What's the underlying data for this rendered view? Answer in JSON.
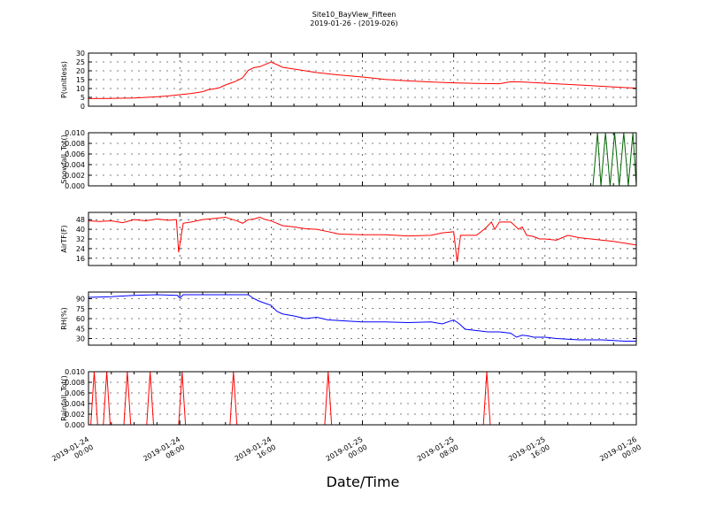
{
  "figure": {
    "title": "Site10_BayView_Fifteen",
    "subtitle": "2019-01-26 - (2019-026)",
    "xlabel": "Date/Time",
    "xtick_labels": [
      [
        "2019-01-24",
        "00:00"
      ],
      [
        "2019-01-24",
        "08:00"
      ],
      [
        "2019-01-24",
        "16:00"
      ],
      [
        "2019-01-25",
        "00:00"
      ],
      [
        "2019-01-25",
        "08:00"
      ],
      [
        "2019-01-25",
        "16:00"
      ],
      [
        "2019-01-26",
        "00:00"
      ]
    ]
  },
  "chart_data": [
    {
      "type": "line",
      "ylabel": "P(unitless)",
      "color": "#ff0000",
      "ylim": [
        0,
        30
      ],
      "yticks": [
        0,
        5,
        10,
        15,
        20,
        25,
        30
      ],
      "xlim": [
        0,
        48
      ],
      "grid": true,
      "x": [
        0,
        2,
        4,
        6,
        7,
        8,
        9,
        10,
        10.5,
        11,
        11.5,
        12,
        12.8,
        13.5,
        14,
        14.5,
        15,
        16,
        17,
        18,
        20,
        22,
        24,
        26,
        28,
        30,
        32,
        34,
        36,
        37,
        38,
        40,
        42,
        44,
        46,
        48
      ],
      "y": [
        4.3,
        4.4,
        4.6,
        5.3,
        5.8,
        6.5,
        7.2,
        8.2,
        9.3,
        9.8,
        10.5,
        12,
        13.8,
        16,
        20.3,
        21.8,
        22.3,
        25,
        22,
        21,
        19,
        17.6,
        16.5,
        15.1,
        14.3,
        13.7,
        13.2,
        12.9,
        12.7,
        13.8,
        13.7,
        13,
        12.3,
        11.6,
        10.9,
        10.2
      ]
    },
    {
      "type": "line",
      "ylabel": "Snowfall_Tot()",
      "color": "#006400",
      "ylim": [
        0,
        0.01
      ],
      "yticks": [
        0.0,
        0.002,
        0.004,
        0.006,
        0.008,
        0.01
      ],
      "ytick_labels": [
        "0.000",
        "0.002",
        "0.004",
        "0.006",
        "0.008",
        "0.010"
      ],
      "xlim": [
        0,
        48
      ],
      "grid": true,
      "x": [
        0,
        44.2,
        44.6,
        44.9,
        45.3,
        45.7,
        46.1,
        46.5,
        46.9,
        47.3,
        47.7,
        48
      ],
      "y": [
        0,
        0,
        0.01,
        0,
        0.01,
        0,
        0.01,
        0,
        0.01,
        0,
        0.01,
        0
      ]
    },
    {
      "type": "line",
      "ylabel": "AirTF(F)",
      "color": "#ff0000",
      "ylim": [
        10,
        54
      ],
      "yticks": [
        16,
        24,
        32,
        40,
        48
      ],
      "xlim": [
        0,
        48
      ],
      "grid": true,
      "x": [
        0,
        1,
        2,
        3,
        4,
        5,
        6,
        7,
        7.7,
        7.9,
        8.3,
        9,
        10,
        11,
        12,
        13,
        13.5,
        14,
        14.5,
        15,
        15.5,
        16,
        17,
        18,
        19,
        20,
        21,
        22,
        24,
        26,
        28,
        30,
        31,
        32,
        32.3,
        32.6,
        33,
        34,
        34.8,
        35.3,
        35.6,
        36,
        37,
        37.7,
        38,
        38.4,
        39,
        39.5,
        40,
        41,
        42,
        43,
        44,
        46,
        48
      ],
      "y": [
        47,
        46.5,
        47,
        45.5,
        48,
        47,
        48.5,
        47.5,
        48,
        21,
        45,
        46,
        48,
        49,
        50,
        47,
        45,
        48,
        48.5,
        50,
        48,
        47,
        43,
        42,
        40.5,
        40,
        38,
        36,
        35.5,
        35.5,
        34.5,
        35,
        37,
        38,
        13,
        35,
        35,
        35,
        41,
        46,
        40,
        46,
        46,
        40,
        42,
        35,
        34,
        32,
        32,
        31,
        35,
        33,
        32,
        30,
        27
      ]
    },
    {
      "type": "line",
      "ylabel": "RH(%)",
      "color": "#0000ff",
      "ylim": [
        20,
        100
      ],
      "yticks": [
        30,
        45,
        60,
        75,
        90
      ],
      "xlim": [
        0,
        48
      ],
      "grid": true,
      "x": [
        0,
        2,
        4,
        6,
        7.8,
        8,
        8.3,
        10,
        12,
        14,
        14.5,
        15,
        16,
        16.5,
        17,
        18,
        19,
        20,
        21,
        22,
        24,
        26,
        28,
        30,
        31,
        32,
        32.5,
        33,
        34,
        35,
        36,
        37,
        37.5,
        38,
        38.5,
        39,
        40,
        41,
        42,
        43,
        44,
        45,
        46,
        47,
        48
      ],
      "y": [
        92,
        93,
        95,
        96,
        95,
        91,
        96,
        96,
        96,
        96,
        90,
        86,
        80,
        71,
        67,
        64,
        60,
        62,
        58,
        57,
        55,
        55,
        54,
        55,
        52,
        58,
        52,
        44,
        42,
        40,
        40,
        38,
        32,
        35,
        34,
        32,
        32,
        30,
        29,
        28,
        28,
        28,
        27,
        26,
        26
      ]
    },
    {
      "type": "line",
      "ylabel": "Rainfall_Tot()",
      "color": "#ff0000",
      "ylim": [
        0,
        0.01
      ],
      "yticks": [
        0.0,
        0.002,
        0.004,
        0.006,
        0.008,
        0.01
      ],
      "ytick_labels": [
        "0.000",
        "0.002",
        "0.004",
        "0.006",
        "0.008",
        "0.010"
      ],
      "xlim": [
        0,
        48
      ],
      "grid": true,
      "x": [
        0,
        0.2,
        0.5,
        0.8,
        1.3,
        1.6,
        1.9,
        3.1,
        3.4,
        3.7,
        5.1,
        5.4,
        5.7,
        7.9,
        8.2,
        8.5,
        12.4,
        12.7,
        13.0,
        20.7,
        21.0,
        21.3,
        34.6,
        34.9,
        35.2,
        48
      ],
      "y": [
        0,
        0,
        0.01,
        0,
        0,
        0.01,
        0,
        0,
        0.01,
        0,
        0,
        0.01,
        0,
        0,
        0.01,
        0,
        0,
        0.01,
        0,
        0,
        0.01,
        0,
        0,
        0.01,
        0,
        0
      ]
    }
  ]
}
